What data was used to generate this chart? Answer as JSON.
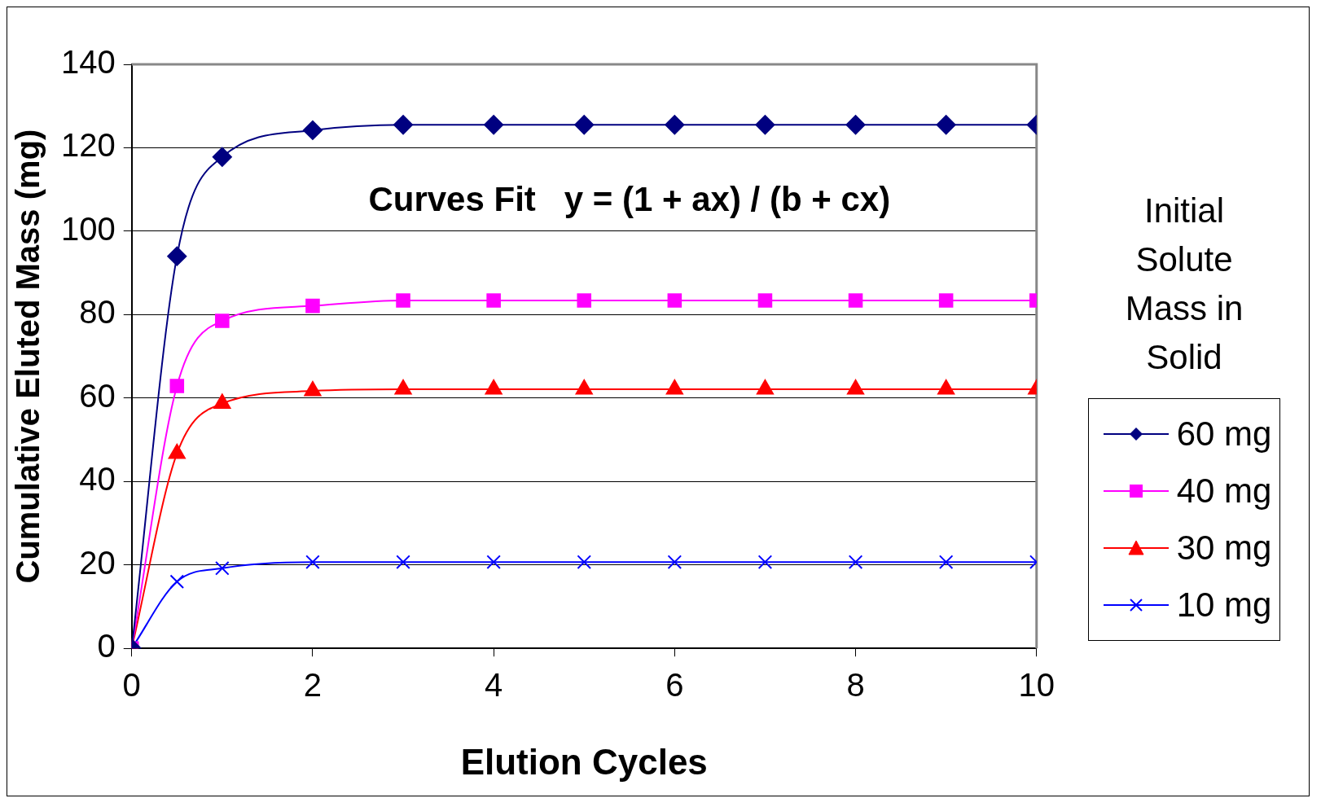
{
  "chart_data": {
    "type": "line",
    "xlabel": "Elution Cycles",
    "ylabel": "Cumulative Eluted Mass (mg)",
    "legend_title": "Initial Solute Mass in Solid",
    "annotations": [
      "Curves Fit   y = (1 + ax) / (b + cx)"
    ],
    "x": [
      0,
      0.5,
      1,
      2,
      3,
      4,
      5,
      6,
      7,
      8,
      9,
      10
    ],
    "xlim": [
      0,
      10
    ],
    "xticks": [
      0,
      2,
      4,
      6,
      8,
      10
    ],
    "ylim": [
      0,
      140
    ],
    "yticks": [
      0,
      20,
      40,
      60,
      80,
      100,
      120,
      140
    ],
    "grid": "y",
    "legend": "right",
    "series": [
      {
        "name": "60 mg",
        "color": "#000080",
        "marker": "diamond",
        "values": [
          0,
          94,
          117.8,
          124.2,
          125.5,
          125.5,
          125.5,
          125.5,
          125.5,
          125.5,
          125.5,
          125.5
        ]
      },
      {
        "name": "40 mg",
        "color": "#ff00ff",
        "marker": "square",
        "values": [
          0,
          62.9,
          78.5,
          82.1,
          83.4,
          83.4,
          83.4,
          83.4,
          83.4,
          83.4,
          83.4,
          83.4
        ]
      },
      {
        "name": "30 mg",
        "color": "#ff0000",
        "marker": "triangle",
        "values": [
          0,
          46.7,
          58.7,
          61.7,
          62.1,
          62.1,
          62.1,
          62.1,
          62.1,
          62.1,
          62.1,
          62.1
        ]
      },
      {
        "name": "10 mg",
        "color": "#0000ff",
        "marker": "cross",
        "values": [
          0,
          16,
          19.2,
          20.7,
          20.7,
          20.7,
          20.7,
          20.7,
          20.7,
          20.7,
          20.7,
          20.7
        ]
      }
    ]
  }
}
